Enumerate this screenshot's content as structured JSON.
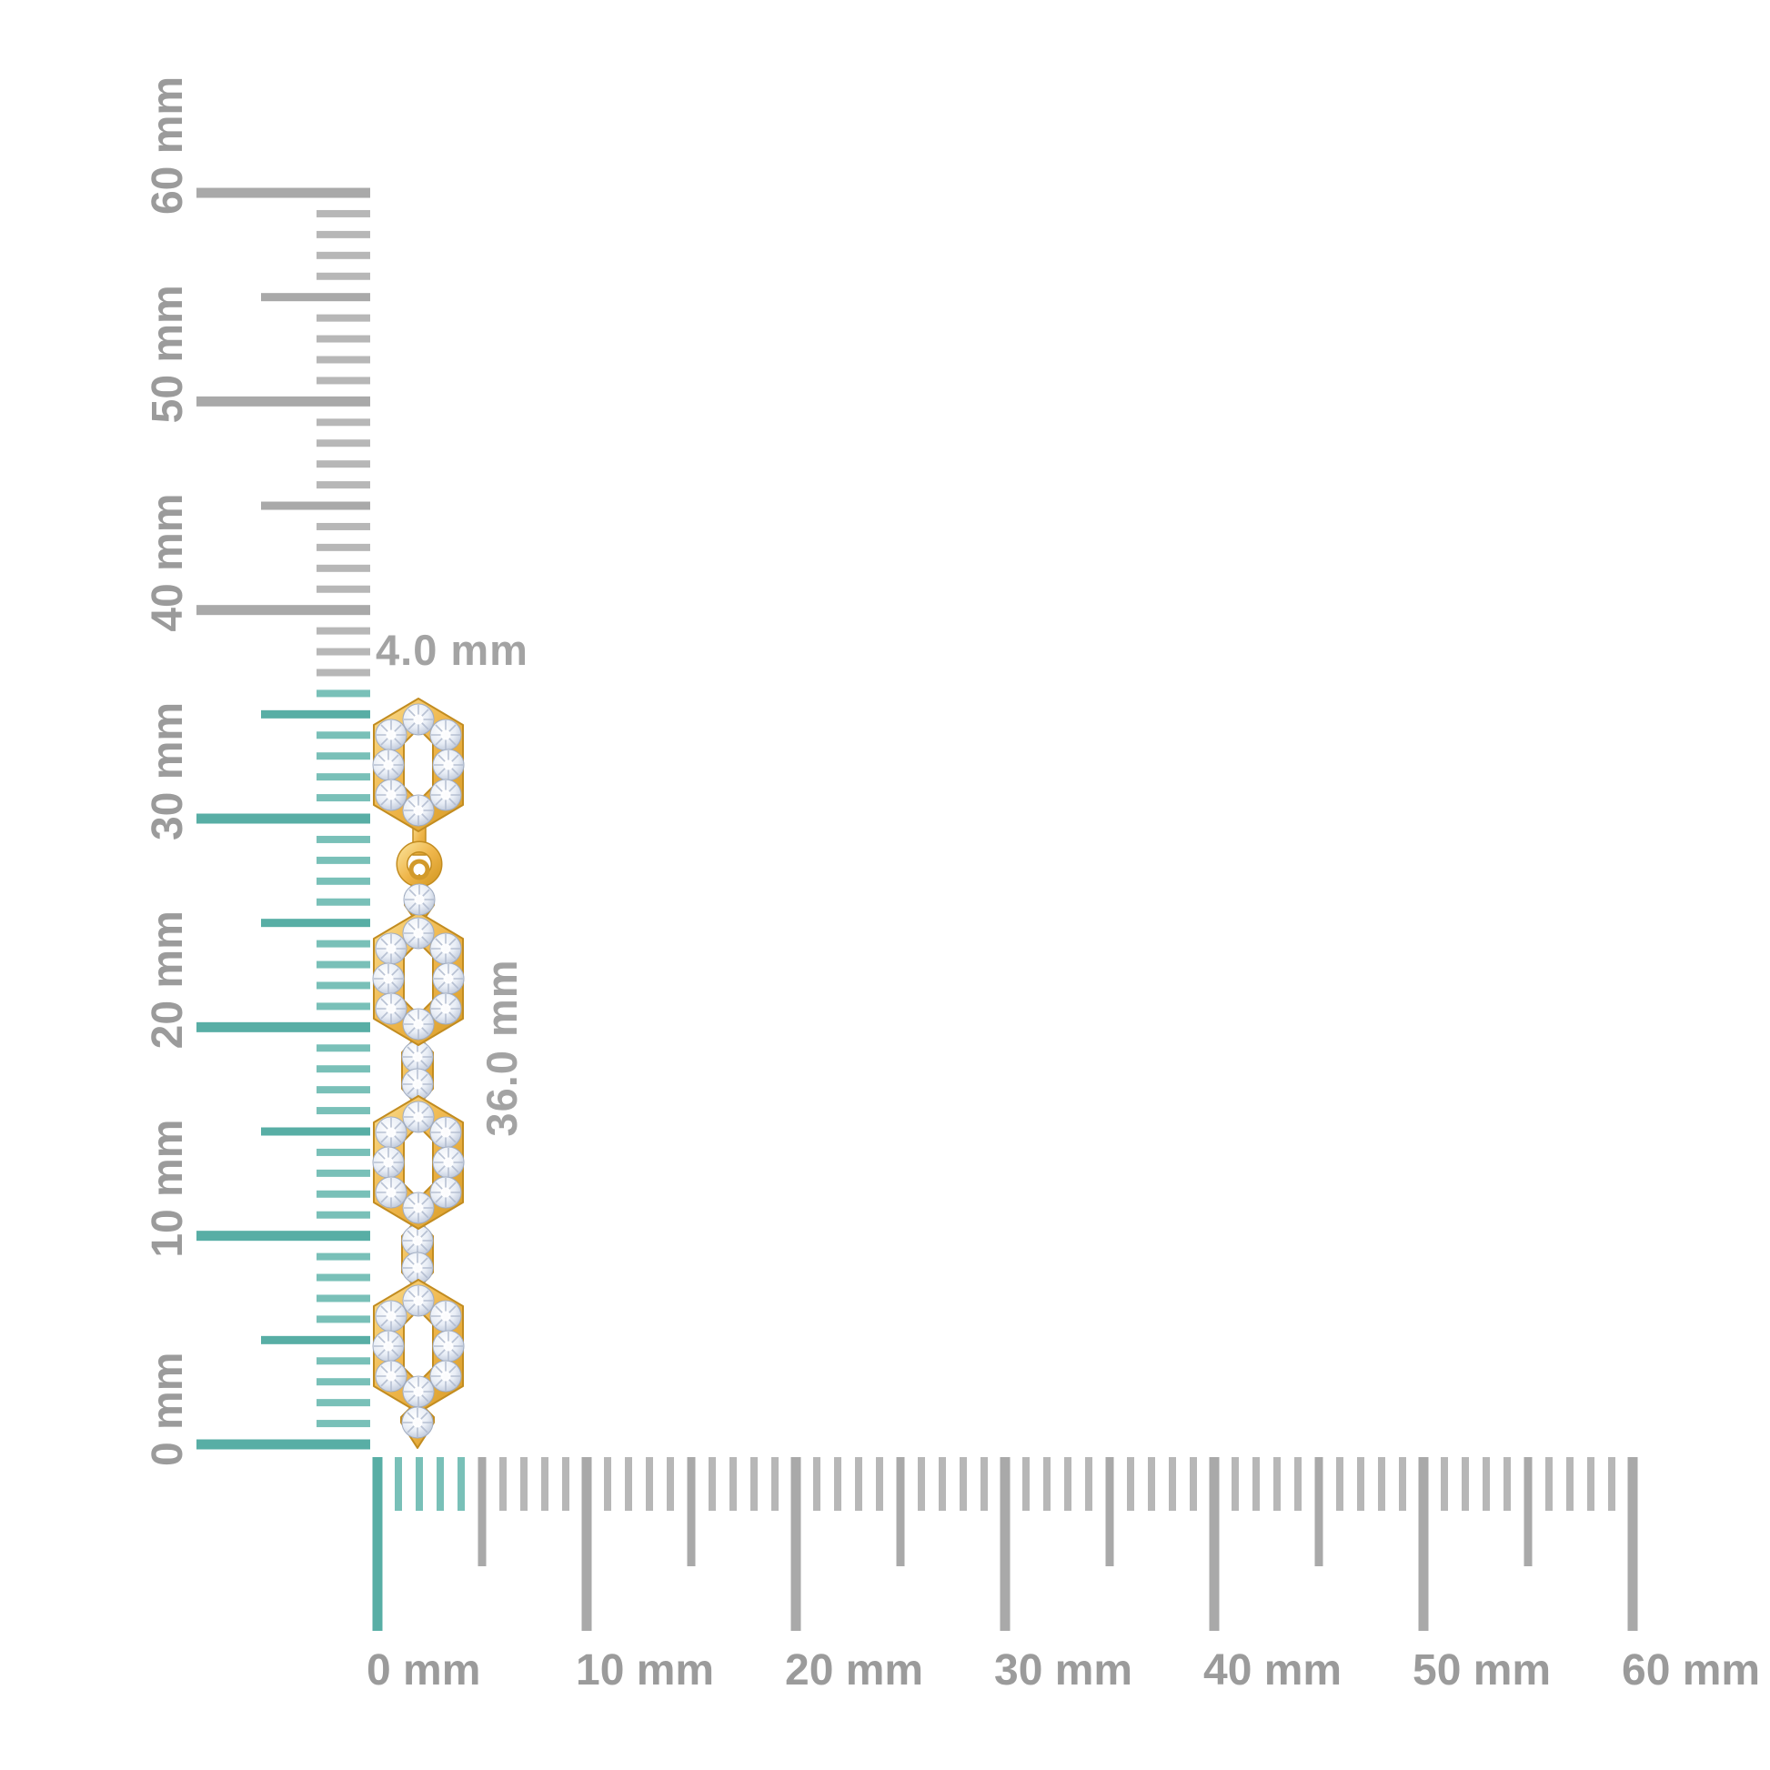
{
  "colors": {
    "background": "#ffffff",
    "teal_major": "#58aea5",
    "teal_minor": "#79c0b8",
    "gray_major": "#a9a9a9",
    "gray_minor": "#b7b7b7",
    "label_gray": "#9b9b9b",
    "annotation_gray": "#a3a3a3",
    "gold": "#efb74d",
    "gold_edge": "#c28c20",
    "diamond": "#e9eef6"
  },
  "unit": "mm",
  "vertical_ruler": {
    "max_mm": 60,
    "minor_step_mm": 1,
    "medium_step_mm": 5,
    "major_step_mm": 10,
    "highlight_to_mm": 36,
    "labels": [
      {
        "mm": 60,
        "text": "60 mm"
      },
      {
        "mm": 50,
        "text": "50 mm"
      },
      {
        "mm": 40,
        "text": "40 mm"
      },
      {
        "mm": 30,
        "text": "30 mm"
      },
      {
        "mm": 20,
        "text": "20 mm"
      },
      {
        "mm": 10,
        "text": "10 mm"
      },
      {
        "mm": 0,
        "text": "0 mm"
      }
    ]
  },
  "horizontal_ruler": {
    "max_mm": 60,
    "minor_step_mm": 1,
    "medium_step_mm": 5,
    "major_step_mm": 10,
    "highlight_to_mm": 4,
    "labels": [
      {
        "mm": 0,
        "text": "0 mm"
      },
      {
        "mm": 10,
        "text": "10 mm"
      },
      {
        "mm": 20,
        "text": "20 mm"
      },
      {
        "mm": 30,
        "text": "30 mm"
      },
      {
        "mm": 40,
        "text": "40 mm"
      },
      {
        "mm": 50,
        "text": "50 mm"
      },
      {
        "mm": 60,
        "text": "60 mm"
      }
    ]
  },
  "annotations": {
    "width_text": "4.0 mm",
    "height_text": "36.0 mm"
  }
}
